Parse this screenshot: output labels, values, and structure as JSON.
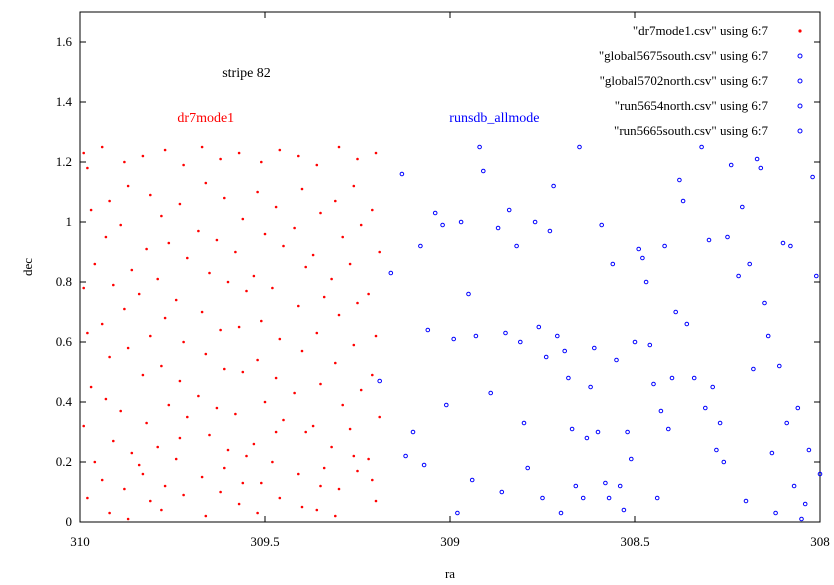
{
  "chart_data": {
    "type": "scatter",
    "title": "",
    "xlabel": "ra",
    "ylabel": "dec",
    "xlim": [
      310,
      308
    ],
    "ylim": [
      0,
      1.7
    ],
    "x_reversed": true,
    "grid": false,
    "legend_position": "top-right",
    "xticks": [
      310,
      309.5,
      309,
      308.5,
      308
    ],
    "xtick_labels": [
      "310",
      "309.5",
      "309",
      "308.5",
      "308"
    ],
    "yticks": [
      0,
      0.2,
      0.4,
      0.6,
      0.8,
      1,
      1.2,
      1.4,
      1.6
    ],
    "ytick_labels": [
      "0",
      "0.2",
      "0.4",
      "0.6",
      "0.8",
      "1",
      "1.2",
      "1.4",
      "1.6"
    ],
    "annotations": [
      {
        "text": "stripe 82",
        "x": 309.55,
        "y": 1.5,
        "color": "#000000"
      },
      {
        "text": "dr7mode1",
        "x": 309.66,
        "y": 1.35,
        "color": "#ff0000"
      },
      {
        "text": "runsdb_allmode",
        "x": 308.88,
        "y": 1.35,
        "color": "#0000ff"
      }
    ],
    "legend": [
      {
        "label": "\"dr7mode1.csv\" using 6:7",
        "color": "#ff0000",
        "marker": "dot"
      },
      {
        "label": "\"global5675south.csv\" using 6:7",
        "color": "#0000ff",
        "marker": "circle"
      },
      {
        "label": "\"global5702north.csv\" using 6:7",
        "color": "#0000ff",
        "marker": "circle"
      },
      {
        "label": "\"run5654north.csv\" using 6:7",
        "color": "#0000ff",
        "marker": "circle"
      },
      {
        "label": "\"run5665south.csv\" using 6:7",
        "color": "#0000ff",
        "marker": "circle"
      }
    ],
    "series": [
      {
        "name": "\"dr7mode1.csv\" using 6:7",
        "color": "#ff0000",
        "marker": "dot",
        "points": [
          [
            309.99,
            1.23
          ],
          [
            309.98,
            1.18
          ],
          [
            309.97,
            1.04
          ],
          [
            309.96,
            0.86
          ],
          [
            309.99,
            0.78
          ],
          [
            309.98,
            0.63
          ],
          [
            309.97,
            0.45
          ],
          [
            309.99,
            0.32
          ],
          [
            309.96,
            0.2
          ],
          [
            309.98,
            0.08
          ],
          [
            309.94,
            1.25
          ],
          [
            309.92,
            1.07
          ],
          [
            309.93,
            0.95
          ],
          [
            309.91,
            0.79
          ],
          [
            309.94,
            0.66
          ],
          [
            309.92,
            0.55
          ],
          [
            309.93,
            0.41
          ],
          [
            309.91,
            0.27
          ],
          [
            309.94,
            0.14
          ],
          [
            309.92,
            0.03
          ],
          [
            309.88,
            1.2
          ],
          [
            309.87,
            1.12
          ],
          [
            309.89,
            0.99
          ],
          [
            309.86,
            0.84
          ],
          [
            309.88,
            0.71
          ],
          [
            309.87,
            0.58
          ],
          [
            309.89,
            0.37
          ],
          [
            309.86,
            0.23
          ],
          [
            309.88,
            0.11
          ],
          [
            309.87,
            0.01
          ],
          [
            309.83,
            1.22
          ],
          [
            309.81,
            1.09
          ],
          [
            309.82,
            0.91
          ],
          [
            309.84,
            0.76
          ],
          [
            309.81,
            0.62
          ],
          [
            309.83,
            0.49
          ],
          [
            309.82,
            0.33
          ],
          [
            309.84,
            0.19
          ],
          [
            309.81,
            0.07
          ],
          [
            309.83,
            0.16
          ],
          [
            309.77,
            1.24
          ],
          [
            309.78,
            1.02
          ],
          [
            309.76,
            0.93
          ],
          [
            309.79,
            0.81
          ],
          [
            309.77,
            0.68
          ],
          [
            309.78,
            0.52
          ],
          [
            309.76,
            0.39
          ],
          [
            309.79,
            0.25
          ],
          [
            309.77,
            0.12
          ],
          [
            309.78,
            0.04
          ],
          [
            309.72,
            1.19
          ],
          [
            309.73,
            1.06
          ],
          [
            309.71,
            0.88
          ],
          [
            309.74,
            0.74
          ],
          [
            309.72,
            0.6
          ],
          [
            309.73,
            0.47
          ],
          [
            309.71,
            0.35
          ],
          [
            309.74,
            0.21
          ],
          [
            309.72,
            0.09
          ],
          [
            309.73,
            0.28
          ],
          [
            309.67,
            1.25
          ],
          [
            309.66,
            1.13
          ],
          [
            309.68,
            0.97
          ],
          [
            309.65,
            0.83
          ],
          [
            309.67,
            0.7
          ],
          [
            309.66,
            0.56
          ],
          [
            309.68,
            0.42
          ],
          [
            309.65,
            0.29
          ],
          [
            309.67,
            0.15
          ],
          [
            309.66,
            0.02
          ],
          [
            309.62,
            1.21
          ],
          [
            309.61,
            1.08
          ],
          [
            309.63,
            0.94
          ],
          [
            309.6,
            0.8
          ],
          [
            309.62,
            0.64
          ],
          [
            309.61,
            0.51
          ],
          [
            309.63,
            0.38
          ],
          [
            309.6,
            0.24
          ],
          [
            309.62,
            0.1
          ],
          [
            309.61,
            0.18
          ],
          [
            309.57,
            1.23
          ],
          [
            309.56,
            1.01
          ],
          [
            309.58,
            0.9
          ],
          [
            309.55,
            0.77
          ],
          [
            309.57,
            0.65
          ],
          [
            309.56,
            0.5
          ],
          [
            309.58,
            0.36
          ],
          [
            309.55,
            0.22
          ],
          [
            309.57,
            0.06
          ],
          [
            309.56,
            0.13
          ],
          [
            309.51,
            1.2
          ],
          [
            309.52,
            1.1
          ],
          [
            309.5,
            0.96
          ],
          [
            309.53,
            0.82
          ],
          [
            309.51,
            0.67
          ],
          [
            309.52,
            0.54
          ],
          [
            309.5,
            0.4
          ],
          [
            309.53,
            0.26
          ],
          [
            309.51,
            0.13
          ],
          [
            309.52,
            0.03
          ],
          [
            309.46,
            1.24
          ],
          [
            309.47,
            1.05
          ],
          [
            309.45,
            0.92
          ],
          [
            309.48,
            0.78
          ],
          [
            309.46,
            0.61
          ],
          [
            309.47,
            0.48
          ],
          [
            309.45,
            0.34
          ],
          [
            309.48,
            0.2
          ],
          [
            309.46,
            0.08
          ],
          [
            309.47,
            0.3
          ],
          [
            309.41,
            1.22
          ],
          [
            309.4,
            1.11
          ],
          [
            309.42,
            0.98
          ],
          [
            309.39,
            0.85
          ],
          [
            309.41,
            0.72
          ],
          [
            309.4,
            0.57
          ],
          [
            309.42,
            0.43
          ],
          [
            309.39,
            0.3
          ],
          [
            309.41,
            0.16
          ],
          [
            309.4,
            0.05
          ],
          [
            309.36,
            1.19
          ],
          [
            309.35,
            1.03
          ],
          [
            309.37,
            0.89
          ],
          [
            309.34,
            0.75
          ],
          [
            309.36,
            0.63
          ],
          [
            309.35,
            0.46
          ],
          [
            309.37,
            0.32
          ],
          [
            309.34,
            0.18
          ],
          [
            309.36,
            0.04
          ],
          [
            309.35,
            0.12
          ],
          [
            309.3,
            1.25
          ],
          [
            309.31,
            1.07
          ],
          [
            309.29,
            0.95
          ],
          [
            309.32,
            0.81
          ],
          [
            309.3,
            0.69
          ],
          [
            309.31,
            0.53
          ],
          [
            309.29,
            0.39
          ],
          [
            309.32,
            0.25
          ],
          [
            309.3,
            0.11
          ],
          [
            309.31,
            0.02
          ],
          [
            309.25,
            1.21
          ],
          [
            309.26,
            1.12
          ],
          [
            309.24,
            0.99
          ],
          [
            309.27,
            0.86
          ],
          [
            309.25,
            0.73
          ],
          [
            309.26,
            0.59
          ],
          [
            309.24,
            0.44
          ],
          [
            309.27,
            0.31
          ],
          [
            309.25,
            0.17
          ],
          [
            309.26,
            0.22
          ],
          [
            309.2,
            1.23
          ],
          [
            309.21,
            1.04
          ],
          [
            309.19,
            0.9
          ],
          [
            309.22,
            0.76
          ],
          [
            309.2,
            0.62
          ],
          [
            309.21,
            0.49
          ],
          [
            309.19,
            0.35
          ],
          [
            309.22,
            0.21
          ],
          [
            309.2,
            0.07
          ],
          [
            309.21,
            0.14
          ]
        ]
      },
      {
        "name": "\"global5675south.csv\" using 6:7",
        "color": "#0000ff",
        "marker": "circle",
        "points": [
          [
            309.19,
            0.47
          ],
          [
            309.16,
            0.83
          ],
          [
            309.13,
            1.16
          ],
          [
            309.12,
            0.22
          ],
          [
            309.1,
            0.3
          ],
          [
            309.08,
            0.92
          ],
          [
            309.07,
            0.19
          ],
          [
            309.06,
            0.64
          ],
          [
            309.04,
            1.03
          ],
          [
            309.02,
            0.99
          ],
          [
            309.01,
            0.39
          ],
          [
            308.99,
            0.61
          ],
          [
            308.98,
            0.03
          ],
          [
            308.97,
            1.0
          ],
          [
            308.95,
            0.76
          ],
          [
            308.94,
            0.14
          ],
          [
            308.93,
            0.62
          ],
          [
            308.92,
            1.25
          ],
          [
            308.91,
            1.17
          ],
          [
            308.89,
            0.43
          ],
          [
            308.87,
            0.98
          ],
          [
            308.86,
            0.1
          ],
          [
            308.85,
            0.63
          ],
          [
            308.84,
            1.04
          ],
          [
            308.82,
            0.92
          ],
          [
            308.81,
            0.6
          ],
          [
            308.8,
            0.33
          ],
          [
            308.79,
            0.18
          ],
          [
            308.77,
            1.0
          ],
          [
            308.76,
            0.65
          ]
        ]
      },
      {
        "name": "\"global5702north.csv\" using 6:7",
        "color": "#0000ff",
        "marker": "circle",
        "points": [
          [
            308.75,
            0.08
          ],
          [
            308.74,
            0.55
          ],
          [
            308.73,
            0.97
          ],
          [
            308.72,
            1.12
          ],
          [
            308.71,
            0.62
          ],
          [
            308.7,
            0.03
          ],
          [
            308.69,
            0.57
          ],
          [
            308.68,
            0.48
          ],
          [
            308.67,
            0.31
          ],
          [
            308.66,
            0.12
          ],
          [
            308.65,
            1.25
          ],
          [
            308.64,
            0.08
          ],
          [
            308.63,
            0.28
          ],
          [
            308.62,
            0.45
          ],
          [
            308.61,
            0.58
          ],
          [
            308.6,
            0.3
          ],
          [
            308.59,
            0.99
          ],
          [
            308.58,
            0.13
          ],
          [
            308.57,
            0.08
          ],
          [
            308.56,
            0.86
          ]
        ]
      },
      {
        "name": "\"run5654north.csv\" using 6:7",
        "color": "#0000ff",
        "marker": "circle",
        "points": [
          [
            308.55,
            0.54
          ],
          [
            308.54,
            0.12
          ],
          [
            308.53,
            0.04
          ],
          [
            308.52,
            0.3
          ],
          [
            308.51,
            0.21
          ],
          [
            308.5,
            0.6
          ],
          [
            308.49,
            0.91
          ],
          [
            308.48,
            0.88
          ],
          [
            308.47,
            0.8
          ],
          [
            308.46,
            0.59
          ],
          [
            308.45,
            0.46
          ],
          [
            308.44,
            0.08
          ],
          [
            308.43,
            0.37
          ],
          [
            308.42,
            0.92
          ],
          [
            308.41,
            0.31
          ],
          [
            308.4,
            0.48
          ],
          [
            308.39,
            0.7
          ],
          [
            308.38,
            1.14
          ],
          [
            308.37,
            1.07
          ],
          [
            308.36,
            0.66
          ]
        ]
      },
      {
        "name": "\"run5665south.csv\" using 6:7",
        "color": "#0000ff",
        "marker": "circle",
        "points": [
          [
            308.34,
            0.48
          ],
          [
            308.32,
            1.25
          ],
          [
            308.31,
            0.38
          ],
          [
            308.3,
            0.94
          ],
          [
            308.29,
            0.45
          ],
          [
            308.28,
            0.24
          ],
          [
            308.27,
            0.33
          ],
          [
            308.26,
            0.2
          ],
          [
            308.25,
            0.95
          ],
          [
            308.24,
            1.19
          ],
          [
            308.22,
            0.82
          ],
          [
            308.21,
            1.05
          ],
          [
            308.2,
            0.07
          ],
          [
            308.19,
            0.86
          ],
          [
            308.18,
            0.51
          ],
          [
            308.17,
            1.21
          ],
          [
            308.16,
            1.18
          ],
          [
            308.15,
            0.73
          ],
          [
            308.14,
            0.62
          ],
          [
            308.13,
            0.23
          ],
          [
            308.12,
            0.03
          ],
          [
            308.11,
            0.52
          ],
          [
            308.1,
            0.93
          ],
          [
            308.09,
            0.33
          ],
          [
            308.08,
            0.92
          ],
          [
            308.07,
            0.12
          ],
          [
            308.06,
            0.38
          ],
          [
            308.05,
            0.01
          ],
          [
            308.04,
            0.06
          ],
          [
            308.03,
            0.24
          ],
          [
            308.02,
            1.15
          ],
          [
            308.01,
            0.82
          ],
          [
            308.0,
            0.16
          ]
        ]
      }
    ]
  }
}
